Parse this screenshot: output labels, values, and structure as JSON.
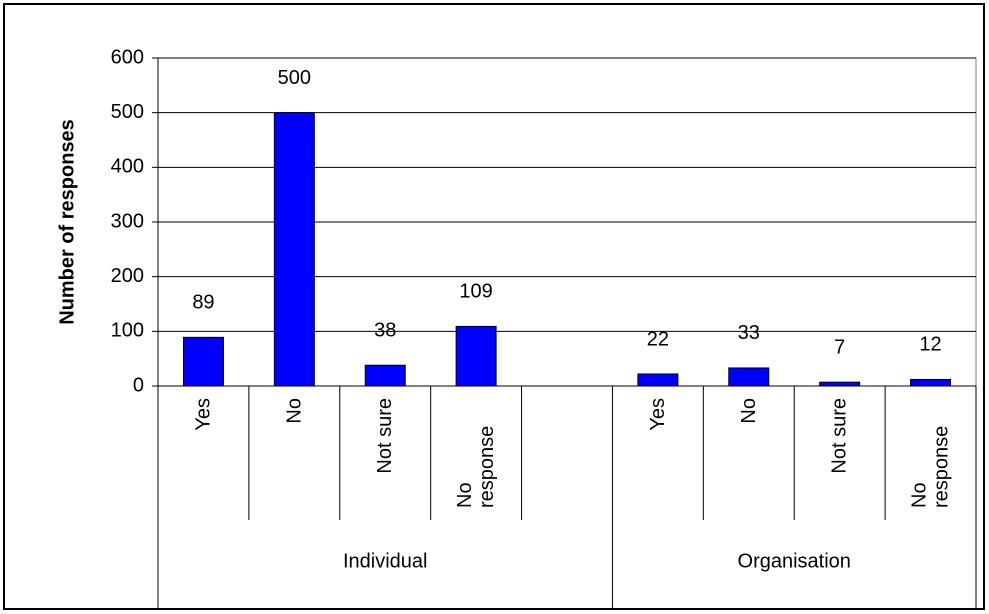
{
  "chart_data": {
    "type": "bar",
    "ylabel": "Number of responses",
    "ylim": [
      0,
      600
    ],
    "yticks": [
      0,
      100,
      200,
      300,
      400,
      500,
      600
    ],
    "grid": true,
    "color": "#0000ff",
    "groups": [
      {
        "name": "Individual",
        "categories": [
          "Yes",
          "No",
          "Not sure",
          "No response",
          null
        ],
        "values": [
          89,
          500,
          38,
          109,
          null
        ]
      },
      {
        "name": "Organisation",
        "categories": [
          "Yes",
          "No",
          "Not sure",
          "No response"
        ],
        "values": [
          22,
          33,
          7,
          12
        ]
      }
    ]
  }
}
